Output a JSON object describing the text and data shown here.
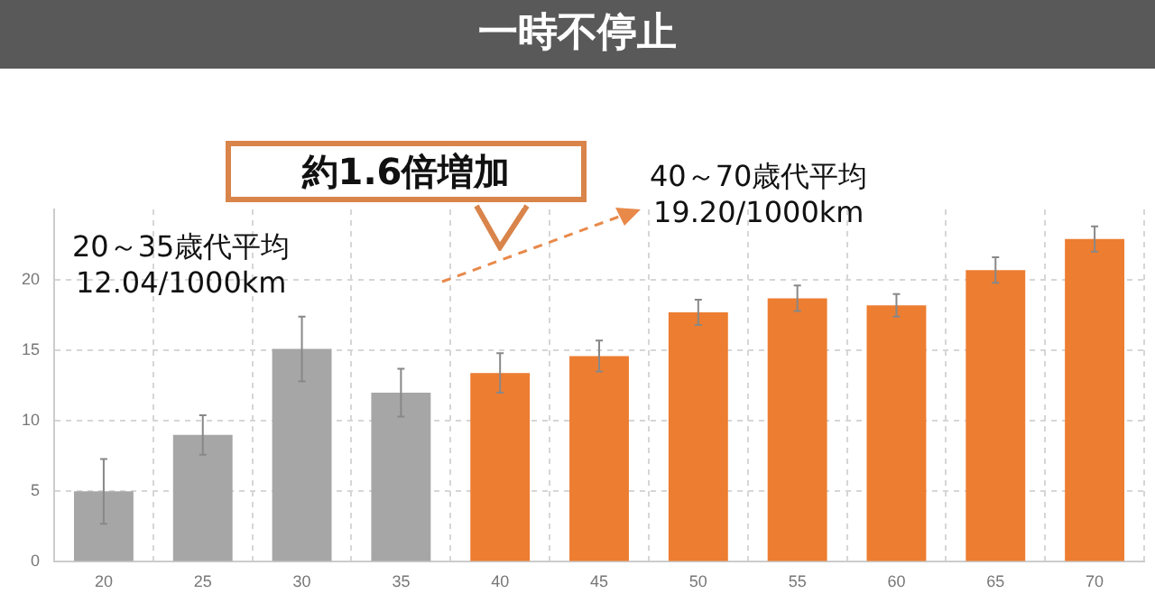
{
  "chart_data": {
    "type": "bar",
    "title": "一時不停止",
    "categories": [
      "20",
      "25",
      "30",
      "35",
      "40",
      "45",
      "50",
      "55",
      "60",
      "65",
      "70"
    ],
    "values": [
      5.0,
      9.0,
      15.1,
      12.0,
      13.4,
      14.6,
      17.7,
      18.7,
      18.2,
      20.7,
      22.9
    ],
    "errors": [
      2.3,
      1.4,
      2.3,
      1.7,
      1.4,
      1.1,
      0.9,
      0.9,
      0.8,
      0.9,
      0.9
    ],
    "colors": [
      "#a6a6a6",
      "#a6a6a6",
      "#a6a6a6",
      "#a6a6a6",
      "#ed7d31",
      "#ed7d31",
      "#ed7d31",
      "#ed7d31",
      "#ed7d31",
      "#ed7d31",
      "#ed7d31"
    ],
    "ylim": [
      0,
      25
    ],
    "yticks": [
      0,
      5,
      10,
      15,
      20
    ],
    "grid": true,
    "legend": false,
    "annotations": [
      "約1.6倍増加",
      "20～35歳代平均\n12.04/1000km",
      "40～70歳代平均\n19.20/1000km"
    ]
  }
}
